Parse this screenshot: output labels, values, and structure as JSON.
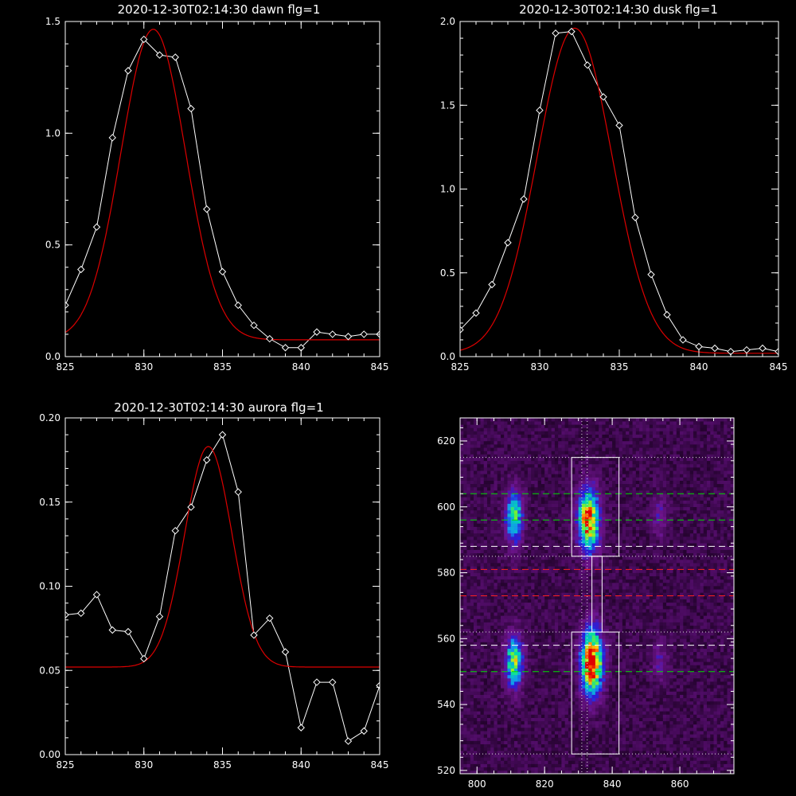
{
  "chart_data": [
    {
      "type": "line",
      "title": "2020-12-30T02:14:30 dawn flg=1",
      "xlim": [
        825,
        845
      ],
      "ylim": [
        0,
        1.5
      ],
      "xticks": [
        "825",
        "830",
        "835",
        "840",
        "845"
      ],
      "yticks": [
        "0.0",
        "0.5",
        "1.0",
        "1.5"
      ],
      "series": [
        {
          "kind": "observed",
          "color": "#ffffff",
          "marker": "diamond",
          "x": [
            825,
            826,
            827,
            828,
            829,
            830,
            831,
            832,
            833,
            834,
            835,
            836,
            837,
            838,
            839,
            840,
            841,
            842,
            843,
            844,
            845
          ],
          "y": [
            0.23,
            0.39,
            0.58,
            0.98,
            1.28,
            1.42,
            1.35,
            1.34,
            1.11,
            0.66,
            0.38,
            0.23,
            0.14,
            0.08,
            0.04,
            0.04,
            0.11,
            0.1,
            0.09,
            0.1,
            0.1
          ]
        },
        {
          "kind": "fit",
          "color": "#dd0000",
          "model": "gaussian",
          "amplitude": 1.39,
          "center": 830.6,
          "sigma": 2.05,
          "baseline": 0.075
        }
      ]
    },
    {
      "type": "line",
      "title": "2020-12-30T02:14:30 dusk flg=1",
      "xlim": [
        825,
        845
      ],
      "ylim": [
        0,
        2.0
      ],
      "xticks": [
        "825",
        "830",
        "835",
        "840",
        "845"
      ],
      "yticks": [
        "0.0",
        "0.5",
        "1.0",
        "1.5",
        "2.0"
      ],
      "series": [
        {
          "kind": "observed",
          "color": "#ffffff",
          "marker": "diamond",
          "x": [
            825,
            826,
            827,
            828,
            829,
            830,
            831,
            832,
            833,
            834,
            835,
            836,
            837,
            838,
            839,
            840,
            841,
            842,
            843,
            844,
            845
          ],
          "y": [
            0.16,
            0.26,
            0.43,
            0.68,
            0.94,
            1.47,
            1.93,
            1.94,
            1.74,
            1.55,
            1.38,
            0.83,
            0.49,
            0.25,
            0.1,
            0.06,
            0.05,
            0.03,
            0.04,
            0.05,
            0.03
          ]
        },
        {
          "kind": "fit",
          "color": "#dd0000",
          "model": "gaussian",
          "amplitude": 1.94,
          "center": 832.2,
          "sigma": 2.35,
          "baseline": 0.02
        }
      ]
    },
    {
      "type": "line",
      "title": "2020-12-30T02:14:30 aurora flg=1",
      "xlim": [
        825,
        845
      ],
      "ylim": [
        0,
        0.2
      ],
      "xticks": [
        "825",
        "830",
        "835",
        "840",
        "845"
      ],
      "yticks": [
        "0.00",
        "0.05",
        "0.10",
        "0.15",
        "0.20"
      ],
      "series": [
        {
          "kind": "observed",
          "color": "#ffffff",
          "marker": "diamond",
          "x": [
            825,
            826,
            827,
            828,
            829,
            830,
            831,
            832,
            833,
            834,
            835,
            836,
            837,
            838,
            839,
            840,
            841,
            842,
            843,
            844,
            845
          ],
          "y": [
            0.083,
            0.084,
            0.095,
            0.074,
            0.073,
            0.057,
            0.082,
            0.133,
            0.147,
            0.175,
            0.19,
            0.156,
            0.071,
            0.081,
            0.061,
            0.016,
            0.043,
            0.043,
            0.008,
            0.014,
            0.041
          ]
        },
        {
          "kind": "fit",
          "color": "#dd0000",
          "model": "gaussian",
          "amplitude": 0.131,
          "center": 834.1,
          "sigma": 1.5,
          "baseline": 0.052
        }
      ]
    },
    {
      "type": "heatmap",
      "xlim": [
        795,
        876
      ],
      "ylim": [
        519,
        627
      ],
      "xticks": [
        "800",
        "820",
        "840",
        "860"
      ],
      "yticks": [
        "520",
        "540",
        "560",
        "580",
        "600",
        "620"
      ],
      "blobs": [
        {
          "x": 811,
          "y": 597,
          "sx": 1.8,
          "sy": 5.5,
          "peak": 0.6
        },
        {
          "x": 833,
          "y": 596,
          "sx": 2.2,
          "sy": 6.5,
          "peak": 0.9
        },
        {
          "x": 811,
          "y": 553,
          "sx": 1.8,
          "sy": 5.5,
          "peak": 0.65
        },
        {
          "x": 834,
          "y": 553,
          "sx": 2.2,
          "sy": 7.0,
          "peak": 1.0
        },
        {
          "x": 854,
          "y": 597,
          "sx": 1.7,
          "sy": 4.5,
          "peak": 0.18
        },
        {
          "x": 854,
          "y": 553,
          "sx": 1.7,
          "sy": 4.5,
          "peak": 0.18
        }
      ],
      "dashed_lines": [
        {
          "y": 604,
          "color": "#00dd00"
        },
        {
          "y": 596,
          "color": "#00dd00"
        },
        {
          "y": 588,
          "color": "#ffffff"
        },
        {
          "y": 581,
          "color": "#ff2020"
        },
        {
          "y": 573,
          "color": "#ff2020"
        },
        {
          "y": 558,
          "color": "#ffffff"
        },
        {
          "y": 550,
          "color": "#00dd00"
        }
      ],
      "dotted_lines": {
        "horizontal": [
          615,
          585,
          562,
          525
        ],
        "vertical": [
          831,
          832.6
        ],
        "color": "#dddddd"
      },
      "boxes": [
        {
          "x0": 828,
          "x1": 842,
          "y0": 585,
          "y1": 615
        },
        {
          "x0": 834,
          "x1": 837,
          "y0": 562,
          "y1": 585
        },
        {
          "x0": 828,
          "x1": 842,
          "y0": 525,
          "y1": 562
        }
      ]
    }
  ]
}
